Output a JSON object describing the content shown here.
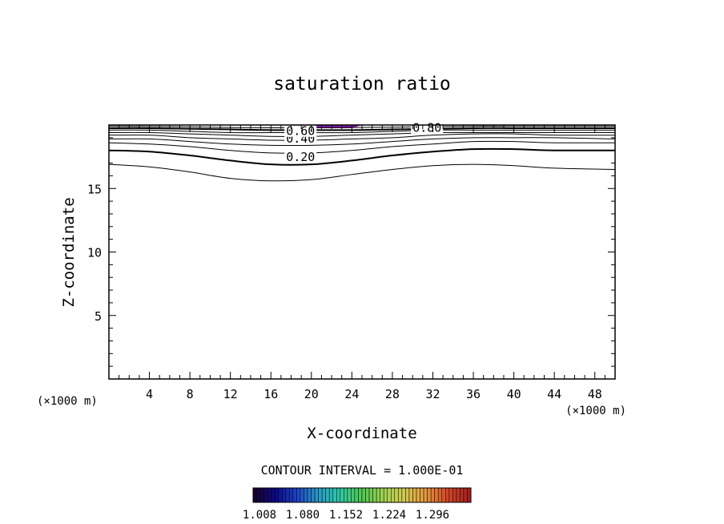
{
  "chart_data": {
    "type": "contour",
    "title": "saturation ratio",
    "xlabel": "X-coordinate",
    "ylabel": "Z-coordinate",
    "x_unit_label": "(×1000 m)",
    "z_unit_label": "(×1000 m)",
    "xlim": [
      0,
      50
    ],
    "ylim": [
      0,
      20
    ],
    "x_ticks": [
      4,
      8,
      12,
      16,
      20,
      24,
      28,
      32,
      36,
      40,
      44,
      48
    ],
    "y_ticks": [
      5,
      10,
      15
    ],
    "x_tick_labels": [
      "4",
      "8",
      "12",
      "16",
      "20",
      "24",
      "28",
      "32",
      "36",
      "40",
      "44",
      "48"
    ],
    "y_tick_labels": [
      "5",
      "10",
      "15"
    ],
    "contour_interval_text": "CONTOUR INTERVAL = 1.000E-01",
    "contours": [
      {
        "level": 0.1,
        "label": "",
        "bold": false,
        "z": [
          16.9,
          16.7,
          16.3,
          15.8,
          15.6,
          15.7,
          16.1,
          16.5,
          16.8,
          16.9,
          16.8,
          16.6,
          16.5
        ]
      },
      {
        "level": 0.2,
        "label": "0.20",
        "bold": true,
        "z": [
          18.0,
          17.9,
          17.6,
          17.2,
          16.9,
          16.9,
          17.2,
          17.6,
          17.9,
          18.1,
          18.1,
          18.0,
          18.0
        ]
      },
      {
        "level": 0.3,
        "label": "",
        "bold": false,
        "z": [
          18.6,
          18.5,
          18.3,
          18.0,
          17.8,
          17.8,
          18.0,
          18.3,
          18.5,
          18.7,
          18.7,
          18.6,
          18.6
        ]
      },
      {
        "level": 0.4,
        "label": "0.40",
        "bold": false,
        "z": [
          18.9,
          18.9,
          18.7,
          18.5,
          18.4,
          18.4,
          18.5,
          18.7,
          18.9,
          19.0,
          19.0,
          19.0,
          18.9
        ]
      },
      {
        "level": 0.5,
        "label": "",
        "bold": false,
        "z": [
          19.2,
          19.2,
          19.0,
          18.9,
          18.8,
          18.8,
          18.9,
          19.0,
          19.2,
          19.3,
          19.3,
          19.2,
          19.2
        ]
      },
      {
        "level": 0.6,
        "label": "0.60",
        "bold": false,
        "z": [
          19.4,
          19.4,
          19.3,
          19.2,
          19.1,
          19.1,
          19.2,
          19.3,
          19.4,
          19.4,
          19.4,
          19.4,
          19.4
        ]
      },
      {
        "level": 0.7,
        "label": "",
        "bold": false,
        "z": [
          19.6,
          19.6,
          19.5,
          19.4,
          19.4,
          19.4,
          19.4,
          19.5,
          19.6,
          19.6,
          19.6,
          19.6,
          19.6
        ]
      },
      {
        "level": 0.8,
        "label": "0.80",
        "bold": true,
        "z": [
          19.75,
          19.75,
          19.7,
          19.65,
          19.6,
          19.6,
          19.6,
          19.65,
          19.7,
          19.75,
          19.75,
          19.75,
          19.75
        ]
      },
      {
        "level": 0.9,
        "label": "",
        "bold": false,
        "z": [
          19.9,
          19.88,
          19.85,
          19.8,
          19.78,
          19.78,
          19.8,
          19.83,
          19.87,
          19.9,
          19.9,
          19.9,
          19.9
        ]
      }
    ],
    "contour_x": [
      0,
      4,
      8,
      12,
      16,
      20,
      24,
      28,
      32,
      36,
      40,
      44,
      50
    ],
    "contour_label_positions": [
      {
        "label": "0.20",
        "x": 17.5,
        "z": 17.15
      },
      {
        "label": "0.40",
        "x": 17.5,
        "z": 18.6
      },
      {
        "label": "0.60",
        "x": 17.5,
        "z": 19.2
      },
      {
        "label": "0.80",
        "x": 30.0,
        "z": 19.45
      }
    ],
    "shaded_region": {
      "x_start": 18.0,
      "x_end": 25.0,
      "z_bottom": 19.75,
      "z_top": 20.0,
      "color": "#8a1ab0"
    },
    "colorbar": {
      "tick_labels": [
        "1.008",
        "1.080",
        "1.152",
        "1.224",
        "1.296"
      ],
      "colors": [
        "#1a0030",
        "#0a0a8a",
        "#1e46c8",
        "#28a0c8",
        "#30c8a0",
        "#50c850",
        "#a0d250",
        "#d2c850",
        "#e6963c",
        "#d24628",
        "#aa1e1e"
      ]
    }
  }
}
